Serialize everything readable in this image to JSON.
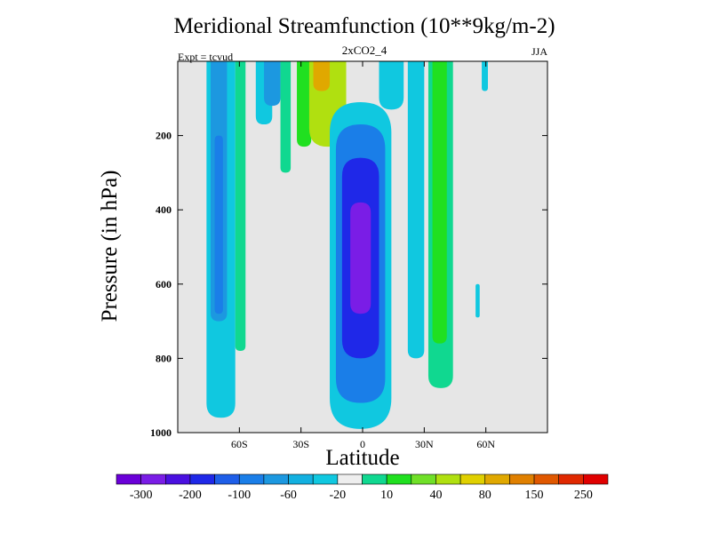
{
  "chart_data": {
    "type": "heatmap",
    "title": "Meridional Streamfunction (10**9kg/m-2)",
    "subtitle": "2xCO2_4",
    "left_annotation": "Expt = tcvud",
    "right_annotation": "JJA",
    "xlabel": "Latitude",
    "ylabel": "Pressure (in hPa)",
    "x_range": [
      -90,
      90
    ],
    "y_range": [
      0,
      1000
    ],
    "y_axis_reversed": true,
    "x_ticks": [
      {
        "value": -60,
        "label": "60S"
      },
      {
        "value": -30,
        "label": "30S"
      },
      {
        "value": 0,
        "label": "0"
      },
      {
        "value": 30,
        "label": "30N"
      },
      {
        "value": 60,
        "label": "60N"
      }
    ],
    "y_ticks": [
      {
        "value": 200,
        "label": "200"
      },
      {
        "value": 400,
        "label": "400"
      },
      {
        "value": 600,
        "label": "600"
      },
      {
        "value": 800,
        "label": "800"
      },
      {
        "value": 1000,
        "label": "1000"
      }
    ],
    "background_color": "#e6e6e6",
    "colorbar": {
      "colors": [
        "#6a00d8",
        "#7a1de6",
        "#4a10e0",
        "#1f28e8",
        "#1e5ee8",
        "#1a7ee8",
        "#1c98e0",
        "#12b0e0",
        "#10c8e0",
        "#eeeeee",
        "#10d890",
        "#20e020",
        "#70e028",
        "#b0e010",
        "#e0d000",
        "#e0a800",
        "#e08000",
        "#e05800",
        "#e02800",
        "#e00000"
      ],
      "labels": [
        "-300",
        "-200",
        "-100",
        "-60",
        "-20",
        "10",
        "40",
        "80",
        "150",
        "250"
      ],
      "placement": "bottom"
    },
    "cells": [
      {
        "lat": -76,
        "lat_end": -62,
        "p_top": 0,
        "p_bottom": 960,
        "value": -20
      },
      {
        "lat": -74,
        "lat_end": -66,
        "p_top": 0,
        "p_bottom": 700,
        "value": -60
      },
      {
        "lat": -72,
        "lat_end": -68,
        "p_top": 200,
        "p_bottom": 680,
        "value": -100
      },
      {
        "lat": -62,
        "lat_end": -57,
        "p_top": 0,
        "p_bottom": 780,
        "value": 10
      },
      {
        "lat": -52,
        "lat_end": -44,
        "p_top": 0,
        "p_bottom": 170,
        "value": -20
      },
      {
        "lat": -48,
        "lat_end": -40,
        "p_top": 0,
        "p_bottom": 120,
        "value": -60
      },
      {
        "lat": -40,
        "lat_end": -35,
        "p_top": 0,
        "p_bottom": 300,
        "value": 10
      },
      {
        "lat": -32,
        "lat_end": -25,
        "p_top": 0,
        "p_bottom": 230,
        "value": 40
      },
      {
        "lat": -26,
        "lat_end": -8,
        "p_top": 0,
        "p_bottom": 230,
        "value": 80
      },
      {
        "lat": -24,
        "lat_end": -16,
        "p_top": 0,
        "p_bottom": 80,
        "value": 150
      },
      {
        "lat": -16,
        "lat_end": 14,
        "p_top": 110,
        "p_bottom": 990,
        "value": -20
      },
      {
        "lat": -13,
        "lat_end": 11,
        "p_top": 170,
        "p_bottom": 920,
        "value": -100
      },
      {
        "lat": -10,
        "lat_end": 8,
        "p_top": 260,
        "p_bottom": 800,
        "value": -200
      },
      {
        "lat": -6,
        "lat_end": 4,
        "p_top": 380,
        "p_bottom": 680,
        "value": -300
      },
      {
        "lat": 8,
        "lat_end": 20,
        "p_top": 0,
        "p_bottom": 130,
        "value": -20
      },
      {
        "lat": 22,
        "lat_end": 30,
        "p_top": 0,
        "p_bottom": 800,
        "value": -20
      },
      {
        "lat": 32,
        "lat_end": 44,
        "p_top": 0,
        "p_bottom": 880,
        "value": 10
      },
      {
        "lat": 34,
        "lat_end": 41,
        "p_top": 0,
        "p_bottom": 760,
        "value": 40
      },
      {
        "lat": 58,
        "lat_end": 61,
        "p_top": 0,
        "p_bottom": 80,
        "value": -20
      },
      {
        "lat": 55,
        "lat_end": 57,
        "p_top": 600,
        "p_bottom": 690,
        "value": -20
      }
    ]
  }
}
